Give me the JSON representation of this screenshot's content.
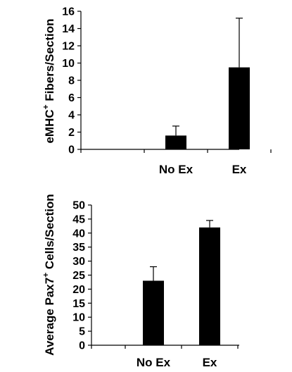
{
  "chart_data": [
    {
      "type": "bar",
      "categories": [
        "",
        "No Ex",
        "Ex"
      ],
      "values": [
        0,
        1.6,
        9.5
      ],
      "errors": [
        0,
        1.1,
        5.7
      ],
      "ylabel_main": "eMHC",
      "ylabel_sup": "+",
      "ylabel_rest": " Fibers/Section",
      "ylim": [
        0,
        16
      ],
      "yticks": [
        "0",
        "2",
        "4",
        "6",
        "8",
        "10",
        "12",
        "14",
        "16"
      ],
      "bar_color": "#000000",
      "grid": false
    },
    {
      "type": "bar",
      "categories": [
        "",
        "No Ex",
        "Ex"
      ],
      "values": [
        null,
        23,
        42
      ],
      "errors": [
        null,
        5,
        2.5
      ],
      "ylabel_main": "Average Pax7",
      "ylabel_sup": "+",
      "ylabel_rest": " Cells/Section",
      "ylim": [
        0,
        50
      ],
      "yticks": [
        "0",
        "5",
        "10",
        "15",
        "20",
        "25",
        "30",
        "35",
        "40",
        "45",
        "50"
      ],
      "bar_color": "#000000",
      "grid": false
    }
  ]
}
